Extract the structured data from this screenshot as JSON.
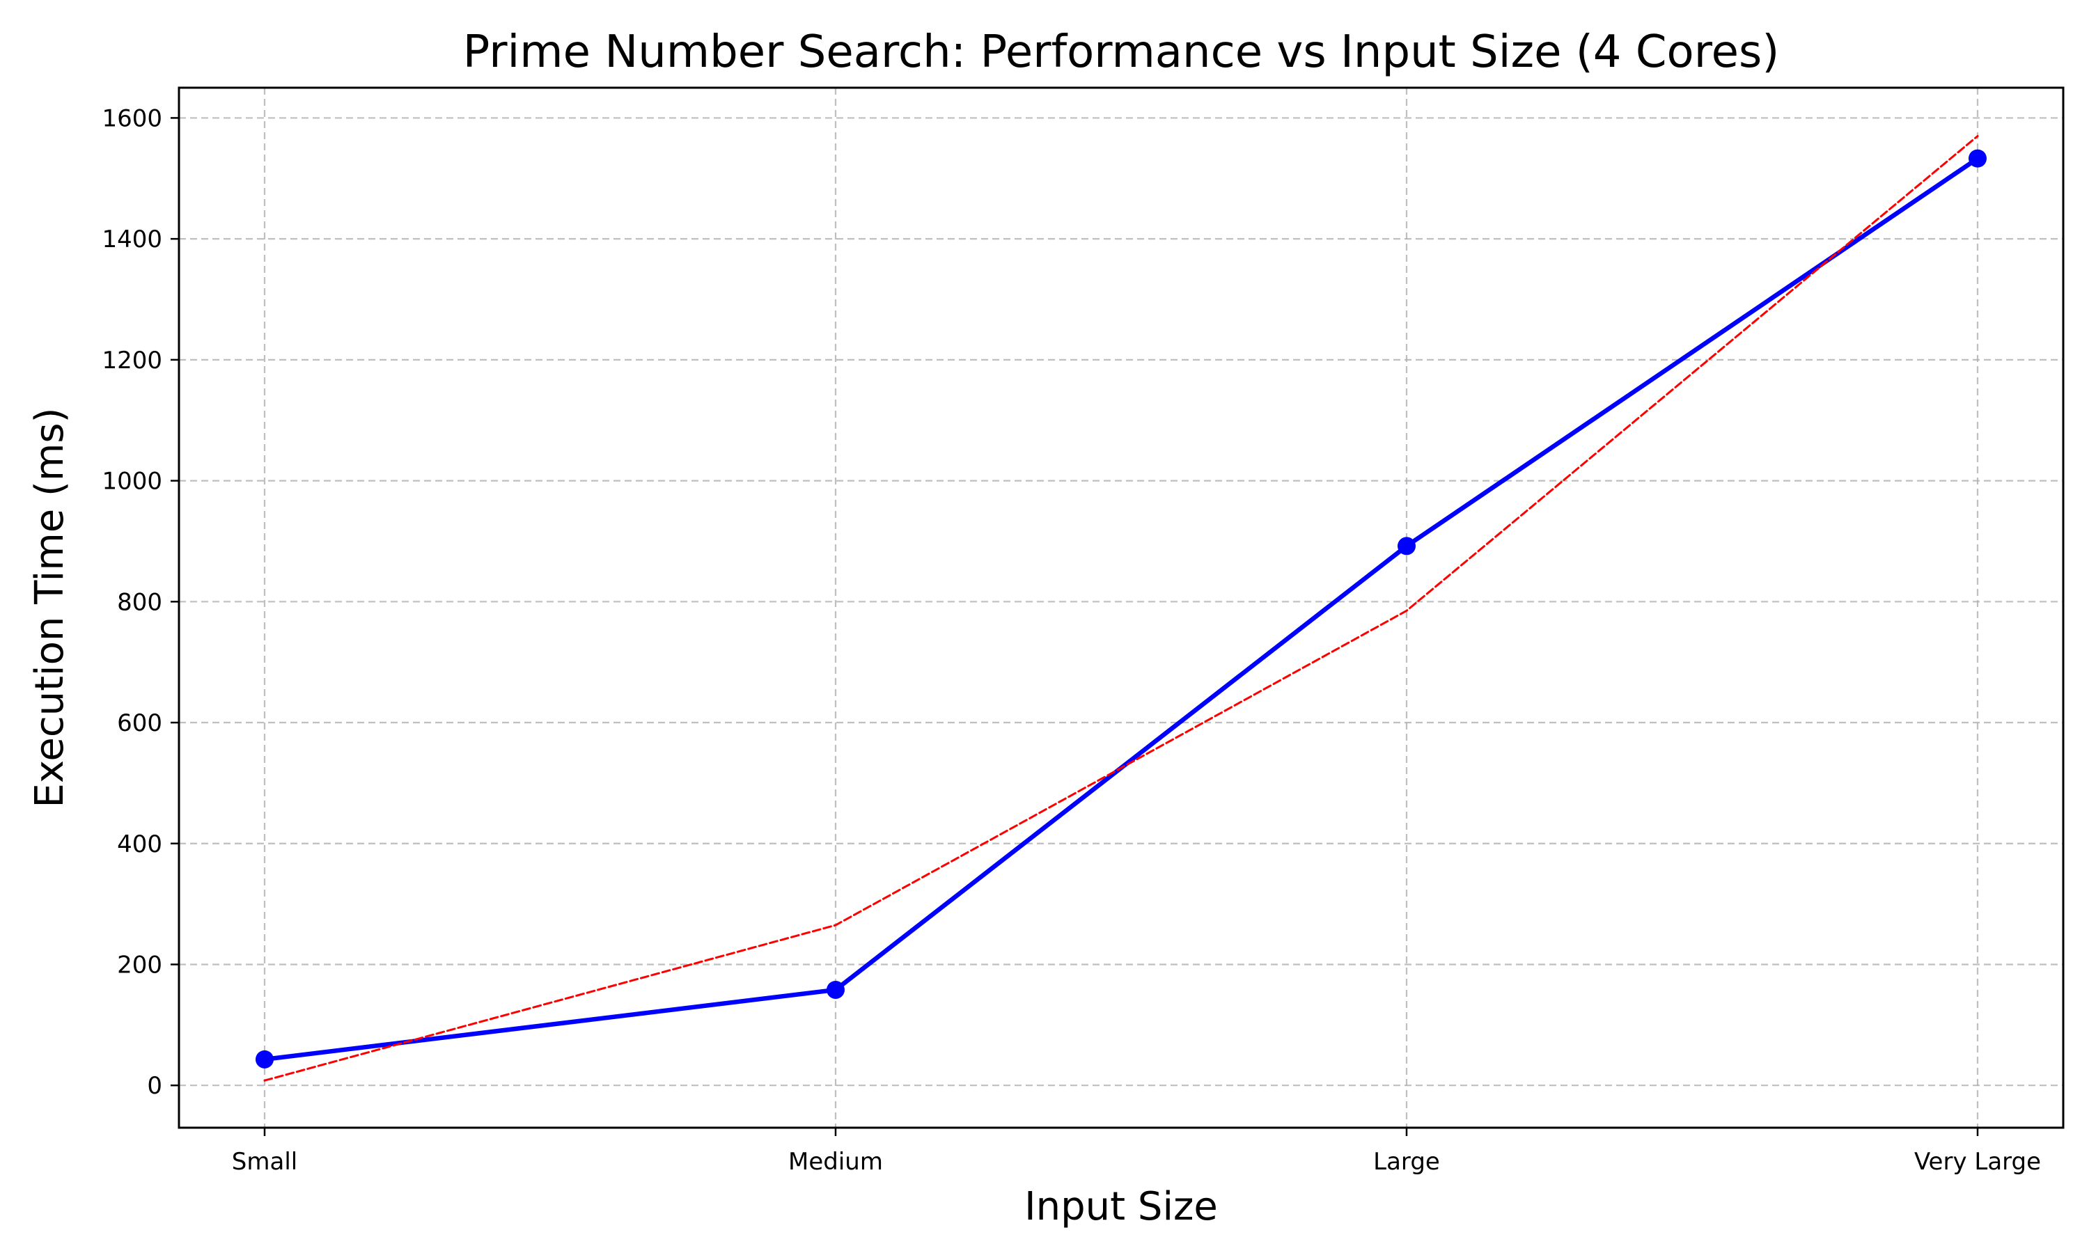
{
  "chart_data": {
    "type": "line",
    "title": "Prime Number Search: Performance vs Input Size (4 Cores)",
    "xlabel": "Input Size",
    "ylabel": "Execution Time (ms)",
    "categories": [
      "Small",
      "Medium",
      "Large",
      "Very Large"
    ],
    "ylim": [
      -70,
      1650
    ],
    "yticks": [
      0,
      200,
      400,
      600,
      800,
      1000,
      1200,
      1400,
      1600
    ],
    "grid": true,
    "series": [
      {
        "values": [
          43,
          158,
          892,
          1533
        ],
        "color": "#0000ff",
        "style": "solid",
        "marker": "circle"
      },
      {
        "values": [
          8,
          265,
          785,
          1570
        ],
        "color": "#ff0000",
        "style": "dashed",
        "marker": "none"
      }
    ]
  }
}
